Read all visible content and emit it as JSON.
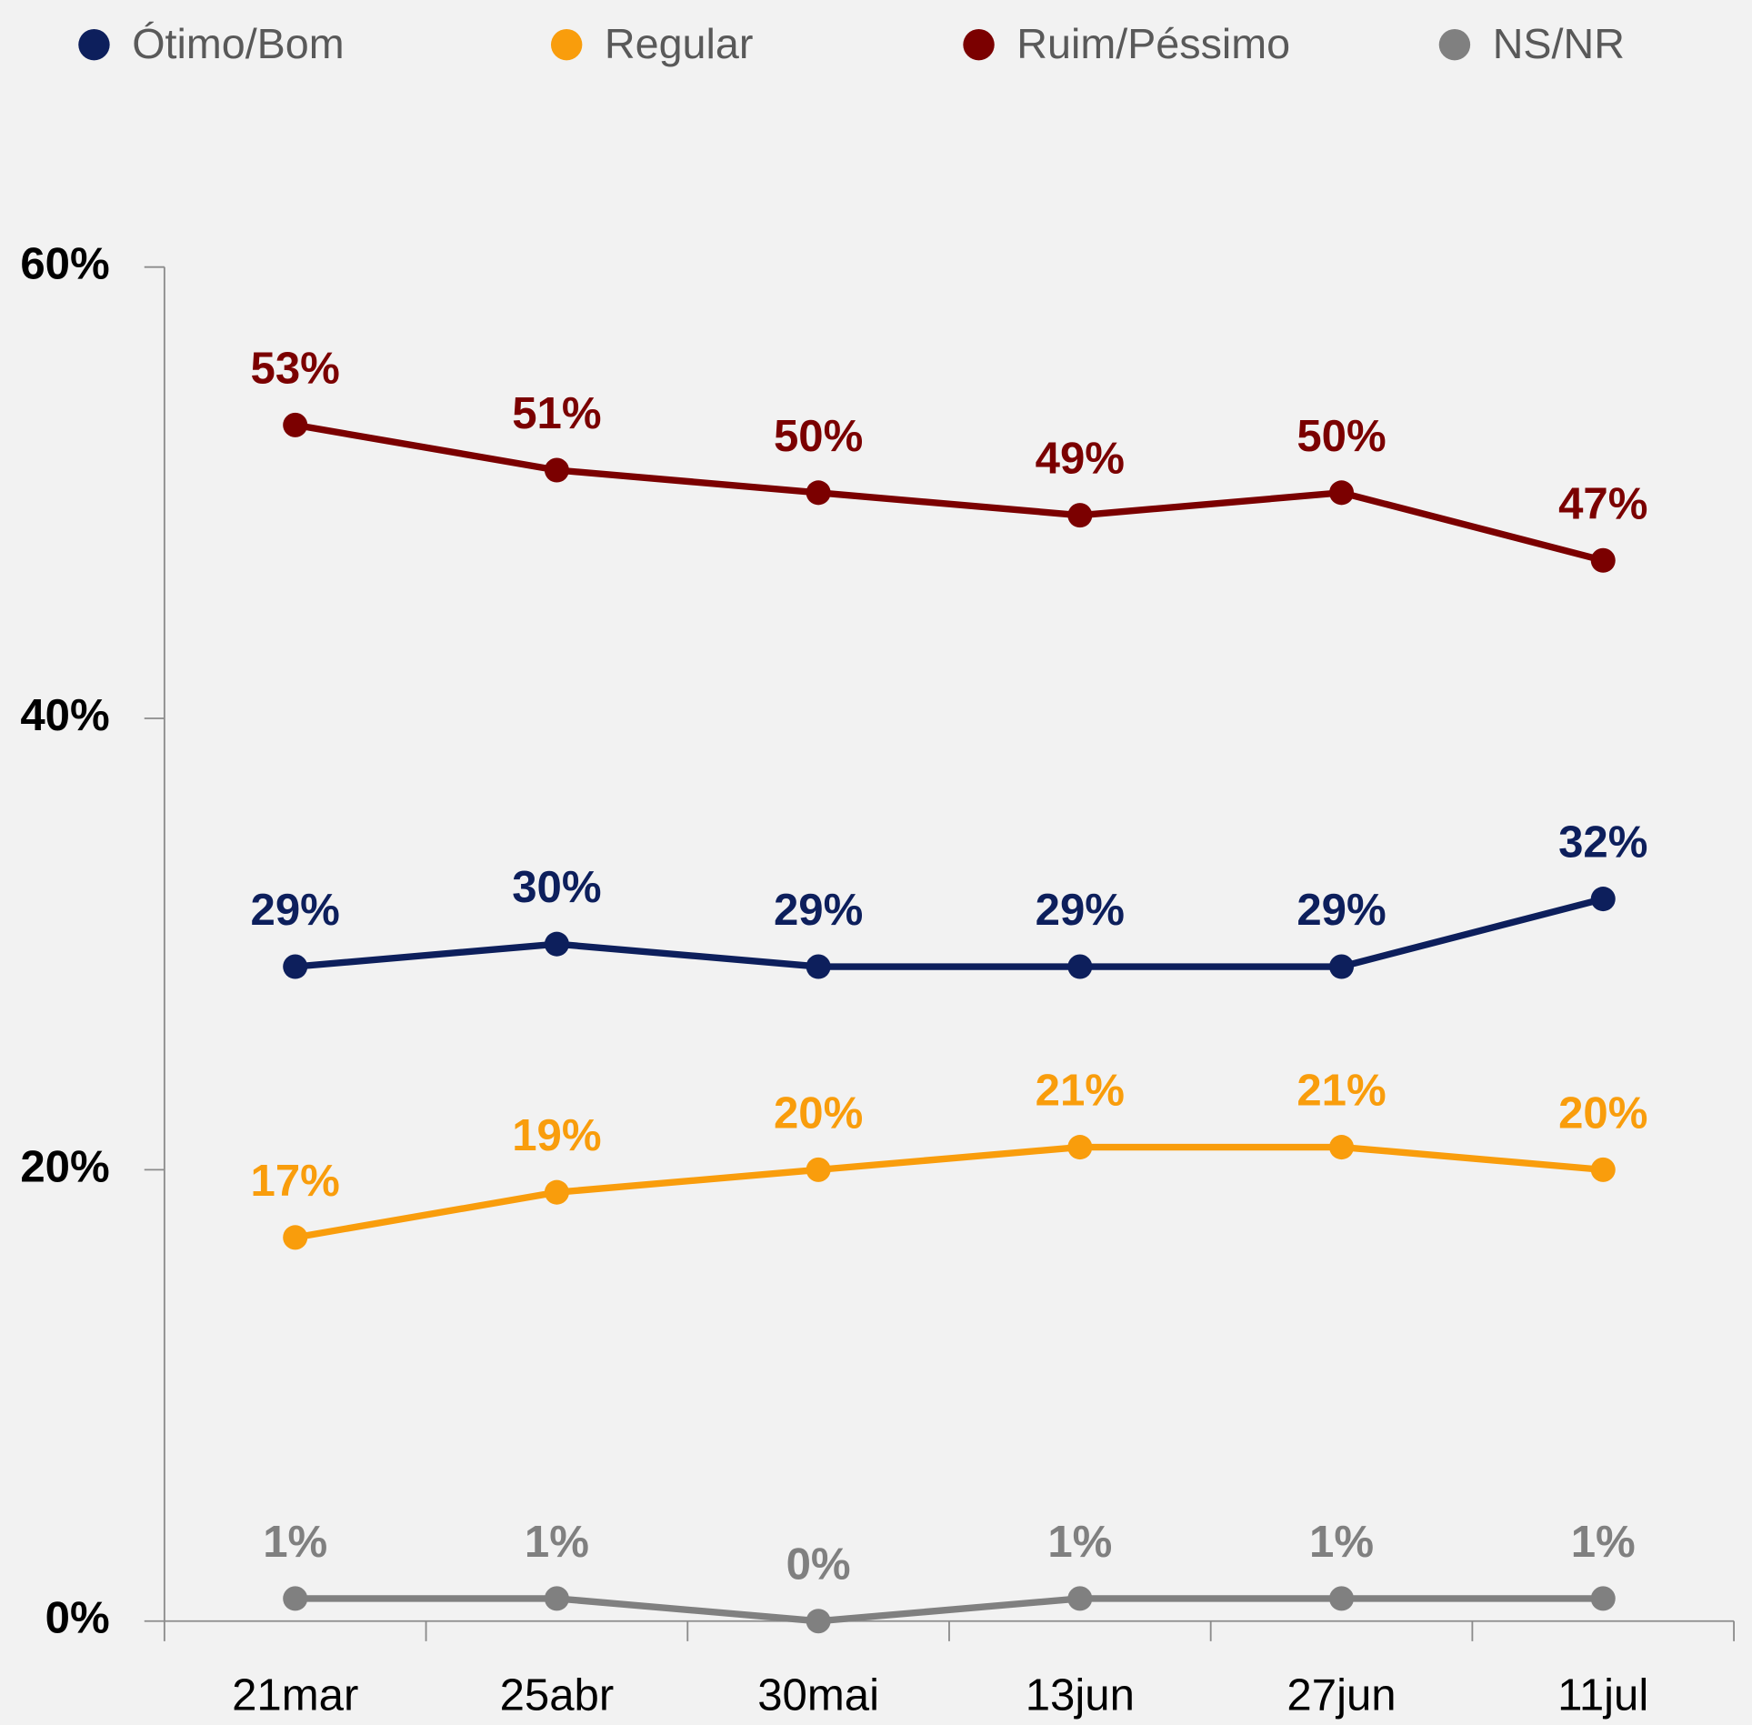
{
  "chart_data": {
    "type": "line",
    "categories": [
      "21mar",
      "25abr",
      "30mai",
      "13jun",
      "27jun",
      "11jul"
    ],
    "series": [
      {
        "name": "Ótimo/Bom",
        "color": "#0d1f5c",
        "values": [
          29,
          30,
          29,
          29,
          29,
          32
        ],
        "value_labels": [
          "29%",
          "30%",
          "29%",
          "29%",
          "29%",
          "32%"
        ]
      },
      {
        "name": "Regular",
        "color": "#f99d0c",
        "values": [
          17,
          19,
          20,
          21,
          21,
          20
        ],
        "value_labels": [
          "17%",
          "19%",
          "20%",
          "21%",
          "21%",
          "20%"
        ]
      },
      {
        "name": "Ruim/Péssimo",
        "color": "#7b0000",
        "values": [
          53,
          51,
          50,
          49,
          50,
          47
        ],
        "value_labels": [
          "53%",
          "51%",
          "50%",
          "49%",
          "50%",
          "47%"
        ]
      },
      {
        "name": "NS/NR",
        "color": "#808080",
        "values": [
          1,
          1,
          0,
          1,
          1,
          1
        ],
        "value_labels": [
          "1%",
          "1%",
          "0%",
          "1%",
          "1%",
          "1%"
        ]
      }
    ],
    "ylim": [
      0,
      60
    ],
    "yticks": [
      {
        "value": 0,
        "label": "0%"
      },
      {
        "value": 20,
        "label": "20%"
      },
      {
        "value": 40,
        "label": "40%"
      },
      {
        "value": 60,
        "label": "60%"
      }
    ],
    "grid": false,
    "legend": "top"
  }
}
